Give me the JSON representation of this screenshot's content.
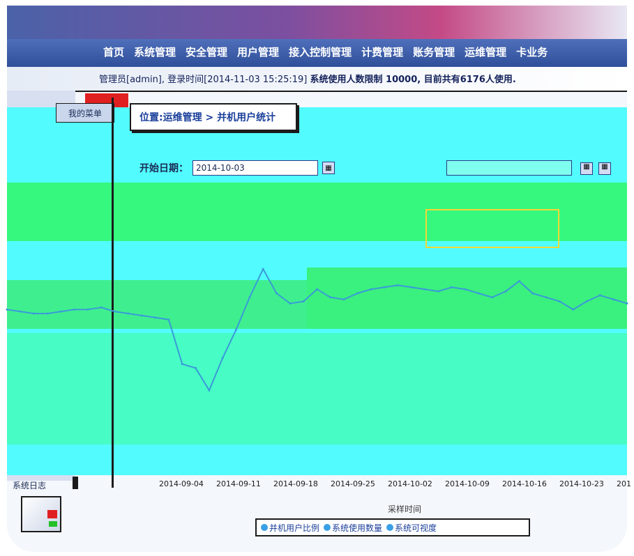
{
  "app": {
    "nav_items": [
      "首页",
      "系统管理",
      "安全管理",
      "用户管理",
      "接入控制管理",
      "计费管理",
      "账务管理",
      "运维管理",
      "卡业务"
    ],
    "login_text": "管理员[admin], 登录时间[2014-11-03 15:25:19]",
    "login_text_extra": "系统使用人数限制 10000, 目前共有6176人使用."
  },
  "breadcrumb": "位置:运维管理 > 并机用户统计",
  "filter": {
    "start_label": "开始日期：",
    "start_value": "2014-10-03"
  },
  "sidebar": {
    "top_label": "我的菜单",
    "bottom_label": "系统日志"
  },
  "chart_data": {
    "type": "line",
    "x_ticks": [
      "2014-09-04",
      "2014-09-11",
      "2014-09-18",
      "2014-09-25",
      "2014-10-02",
      "2014-10-09",
      "2014-10-16",
      "2014-10-23",
      "201"
    ],
    "xlabel": "采样时间",
    "series": [
      {
        "values": [
          62,
          61,
          60,
          60,
          61,
          62,
          62,
          63,
          61,
          60,
          59,
          58,
          57,
          35,
          33,
          22,
          38,
          52,
          68,
          82,
          70,
          65,
          66,
          72,
          68,
          67,
          70,
          72,
          73,
          74,
          73,
          72,
          71,
          73,
          72,
          70,
          68,
          71,
          76,
          70,
          68,
          66,
          62,
          66,
          69,
          67,
          65
        ]
      }
    ]
  },
  "toolbar": {
    "items": [
      "并机用户比例",
      "系统使用数量",
      "系统可视度"
    ]
  },
  "colors": {
    "cyan": "#52fbfd",
    "green": "#36f87f",
    "line": "#3a9ad8"
  }
}
